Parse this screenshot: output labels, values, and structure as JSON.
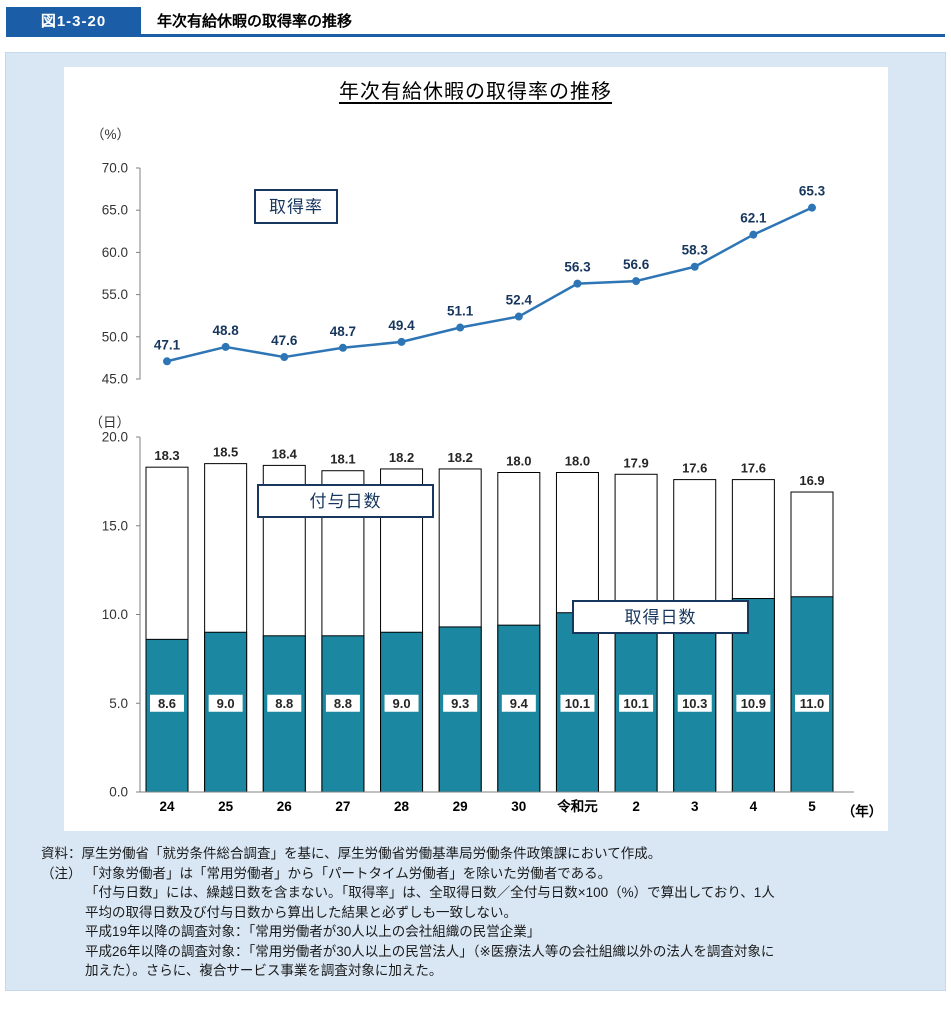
{
  "header": {
    "badge": "図1-3-20",
    "title": "年次有給休暇の取得率の推移"
  },
  "chart": {
    "title": "年次有給休暇の取得率の推移"
  },
  "chart_data": [
    {
      "type": "line",
      "title": "取得率",
      "series_label": "取得率",
      "categories": [
        "24",
        "25",
        "26",
        "27",
        "28",
        "29",
        "30",
        "令和元",
        "2",
        "3",
        "4",
        "5"
      ],
      "values": [
        47.1,
        48.8,
        47.6,
        48.7,
        49.4,
        51.1,
        52.4,
        56.3,
        56.6,
        58.3,
        62.1,
        65.3
      ],
      "ylabel": "（%）",
      "ylim": [
        45.0,
        70.0
      ],
      "yticks": [
        70.0,
        65.0,
        60.0,
        55.0,
        50.0,
        45.0
      ],
      "grid": false,
      "line_color": "#2e75b6"
    },
    {
      "type": "bar",
      "title": "付与日数・取得日数",
      "categories": [
        "24",
        "25",
        "26",
        "27",
        "28",
        "29",
        "30",
        "令和元",
        "2",
        "3",
        "4",
        "5"
      ],
      "series": [
        {
          "name": "付与日数",
          "values": [
            18.3,
            18.5,
            18.4,
            18.1,
            18.2,
            18.2,
            18.0,
            18.0,
            17.9,
            17.6,
            17.6,
            16.9
          ],
          "color": "#ffffff"
        },
        {
          "name": "取得日数",
          "values": [
            8.6,
            9.0,
            8.8,
            8.8,
            9.0,
            9.3,
            9.4,
            10.1,
            10.1,
            10.3,
            10.9,
            11.0
          ],
          "color": "#1b87a0"
        }
      ],
      "ylabel": "（日）",
      "xlabel_suffix": "（年）",
      "ylim": [
        0.0,
        20.0
      ],
      "yticks": [
        20.0,
        15.0,
        10.0,
        5.0,
        0.0
      ],
      "grid": false
    }
  ],
  "notes": {
    "source": "資料：厚生労働省「就労条件総合調査」を基に、厚生労働省労働基準局労働条件政策課において作成。",
    "note_label": "（注）",
    "lines": [
      "「対象労働者」は「常用労働者」から「パートタイム労働者」を除いた労働者である。",
      "「付与日数」には、繰越日数を含まない。「取得率」は、全取得日数／全付与日数×100（%）で算出しており、1人",
      "平均の取得日数及び付与日数から算出した結果と必ずしも一致しない。",
      "平成19年以降の調査対象：「常用労働者が30人以上の会社組織の民営企業」",
      "平成26年以降の調査対象：「常用労働者が30人以上の民営法人」（※医療法人等の会社組織以外の法人を調査対象に",
      "加えた）。さらに、複合サービス事業を調査対象に加えた。"
    ]
  },
  "colors": {
    "header_blue": "#1c5da8",
    "panel_bg": "#d9e7f5",
    "line_blue": "#2e75b6",
    "bar_teal": "#1b87a0",
    "box_border_navy": "#17375e"
  }
}
